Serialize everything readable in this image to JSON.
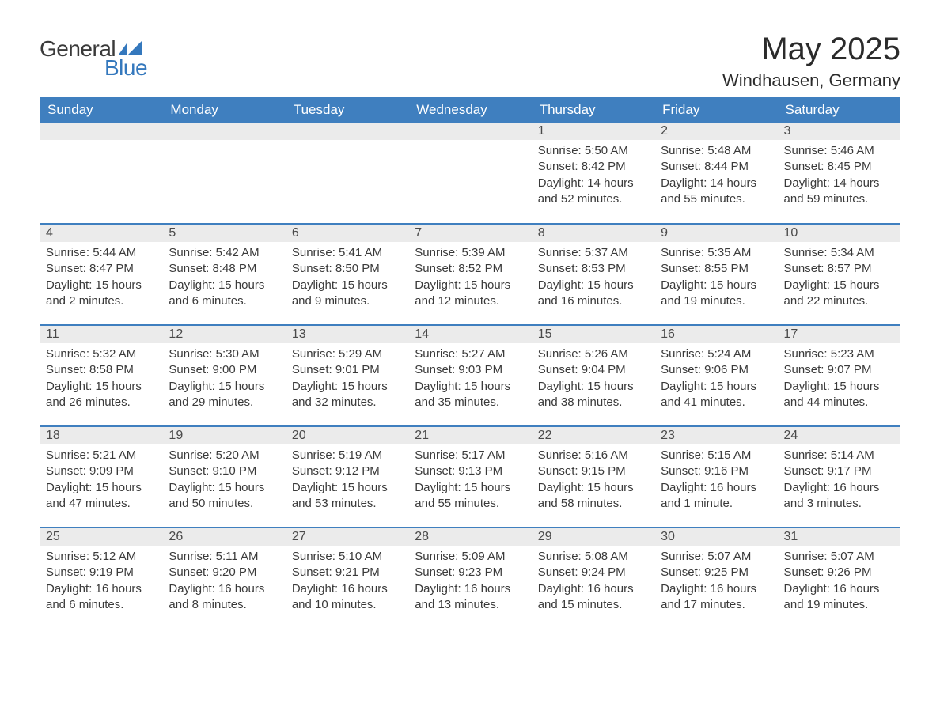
{
  "brand": {
    "name_part1": "General",
    "name_part2": "Blue",
    "flag_color": "#3478bd"
  },
  "title": {
    "month_year": "May 2025",
    "location": "Windhausen, Germany"
  },
  "colors": {
    "header_bg": "#3f7fbf",
    "header_text": "#ffffff",
    "daynum_bg": "#ebebeb",
    "week_separator": "#3f7fbf",
    "body_text": "#3a3a3a",
    "page_bg": "#ffffff"
  },
  "typography": {
    "title_fontsize_pt": 30,
    "location_fontsize_pt": 16,
    "header_fontsize_pt": 13,
    "body_fontsize_pt": 11
  },
  "layout": {
    "columns": 7,
    "rows": 5,
    "first_day_column_index": 4
  },
  "weekdays": [
    "Sunday",
    "Monday",
    "Tuesday",
    "Wednesday",
    "Thursday",
    "Friday",
    "Saturday"
  ],
  "labels": {
    "sunrise": "Sunrise:",
    "sunset": "Sunset:",
    "daylight": "Daylight:"
  },
  "days": [
    {
      "n": 1,
      "sunrise": "5:50 AM",
      "sunset": "8:42 PM",
      "daylight": "14 hours and 52 minutes."
    },
    {
      "n": 2,
      "sunrise": "5:48 AM",
      "sunset": "8:44 PM",
      "daylight": "14 hours and 55 minutes."
    },
    {
      "n": 3,
      "sunrise": "5:46 AM",
      "sunset": "8:45 PM",
      "daylight": "14 hours and 59 minutes."
    },
    {
      "n": 4,
      "sunrise": "5:44 AM",
      "sunset": "8:47 PM",
      "daylight": "15 hours and 2 minutes."
    },
    {
      "n": 5,
      "sunrise": "5:42 AM",
      "sunset": "8:48 PM",
      "daylight": "15 hours and 6 minutes."
    },
    {
      "n": 6,
      "sunrise": "5:41 AM",
      "sunset": "8:50 PM",
      "daylight": "15 hours and 9 minutes."
    },
    {
      "n": 7,
      "sunrise": "5:39 AM",
      "sunset": "8:52 PM",
      "daylight": "15 hours and 12 minutes."
    },
    {
      "n": 8,
      "sunrise": "5:37 AM",
      "sunset": "8:53 PM",
      "daylight": "15 hours and 16 minutes."
    },
    {
      "n": 9,
      "sunrise": "5:35 AM",
      "sunset": "8:55 PM",
      "daylight": "15 hours and 19 minutes."
    },
    {
      "n": 10,
      "sunrise": "5:34 AM",
      "sunset": "8:57 PM",
      "daylight": "15 hours and 22 minutes."
    },
    {
      "n": 11,
      "sunrise": "5:32 AM",
      "sunset": "8:58 PM",
      "daylight": "15 hours and 26 minutes."
    },
    {
      "n": 12,
      "sunrise": "5:30 AM",
      "sunset": "9:00 PM",
      "daylight": "15 hours and 29 minutes."
    },
    {
      "n": 13,
      "sunrise": "5:29 AM",
      "sunset": "9:01 PM",
      "daylight": "15 hours and 32 minutes."
    },
    {
      "n": 14,
      "sunrise": "5:27 AM",
      "sunset": "9:03 PM",
      "daylight": "15 hours and 35 minutes."
    },
    {
      "n": 15,
      "sunrise": "5:26 AM",
      "sunset": "9:04 PM",
      "daylight": "15 hours and 38 minutes."
    },
    {
      "n": 16,
      "sunrise": "5:24 AM",
      "sunset": "9:06 PM",
      "daylight": "15 hours and 41 minutes."
    },
    {
      "n": 17,
      "sunrise": "5:23 AM",
      "sunset": "9:07 PM",
      "daylight": "15 hours and 44 minutes."
    },
    {
      "n": 18,
      "sunrise": "5:21 AM",
      "sunset": "9:09 PM",
      "daylight": "15 hours and 47 minutes."
    },
    {
      "n": 19,
      "sunrise": "5:20 AM",
      "sunset": "9:10 PM",
      "daylight": "15 hours and 50 minutes."
    },
    {
      "n": 20,
      "sunrise": "5:19 AM",
      "sunset": "9:12 PM",
      "daylight": "15 hours and 53 minutes."
    },
    {
      "n": 21,
      "sunrise": "5:17 AM",
      "sunset": "9:13 PM",
      "daylight": "15 hours and 55 minutes."
    },
    {
      "n": 22,
      "sunrise": "5:16 AM",
      "sunset": "9:15 PM",
      "daylight": "15 hours and 58 minutes."
    },
    {
      "n": 23,
      "sunrise": "5:15 AM",
      "sunset": "9:16 PM",
      "daylight": "16 hours and 1 minute."
    },
    {
      "n": 24,
      "sunrise": "5:14 AM",
      "sunset": "9:17 PM",
      "daylight": "16 hours and 3 minutes."
    },
    {
      "n": 25,
      "sunrise": "5:12 AM",
      "sunset": "9:19 PM",
      "daylight": "16 hours and 6 minutes."
    },
    {
      "n": 26,
      "sunrise": "5:11 AM",
      "sunset": "9:20 PM",
      "daylight": "16 hours and 8 minutes."
    },
    {
      "n": 27,
      "sunrise": "5:10 AM",
      "sunset": "9:21 PM",
      "daylight": "16 hours and 10 minutes."
    },
    {
      "n": 28,
      "sunrise": "5:09 AM",
      "sunset": "9:23 PM",
      "daylight": "16 hours and 13 minutes."
    },
    {
      "n": 29,
      "sunrise": "5:08 AM",
      "sunset": "9:24 PM",
      "daylight": "16 hours and 15 minutes."
    },
    {
      "n": 30,
      "sunrise": "5:07 AM",
      "sunset": "9:25 PM",
      "daylight": "16 hours and 17 minutes."
    },
    {
      "n": 31,
      "sunrise": "5:07 AM",
      "sunset": "9:26 PM",
      "daylight": "16 hours and 19 minutes."
    }
  ]
}
